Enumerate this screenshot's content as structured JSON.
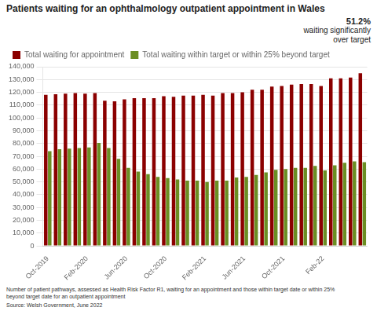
{
  "chart_data": {
    "type": "bar",
    "title": "Patients waiting for an ophthalmology outpatient appointment in Wales",
    "categories": [
      "Oct-2019",
      null,
      null,
      null,
      "Feb-2020",
      null,
      null,
      null,
      "Jun-2020",
      null,
      null,
      null,
      "Oct-2020",
      null,
      null,
      null,
      "Feb-2021",
      null,
      null,
      null,
      "Jun-2021",
      null,
      null,
      null,
      "Oct-2021",
      null,
      null,
      null,
      "Feb-22",
      null,
      null,
      null,
      null
    ],
    "series": [
      {
        "name": "Total waiting for appointment",
        "color": "#8B0000",
        "values": [
          118000,
          118500,
          119000,
          119500,
          119000,
          119500,
          113500,
          113000,
          114500,
          115500,
          115500,
          115500,
          117000,
          116500,
          117500,
          117500,
          118000,
          117500,
          119500,
          119500,
          120000,
          122000,
          122000,
          124500,
          125000,
          126000,
          126500,
          126500,
          125000,
          131000,
          131000,
          131500,
          135000
        ]
      },
      {
        "name": "Total waiting within target or within 25% beyond target",
        "color": "#6B8E23",
        "values": [
          74000,
          75500,
          76000,
          76500,
          77000,
          80500,
          76500,
          68000,
          61000,
          58000,
          56000,
          54000,
          53000,
          52000,
          51000,
          51000,
          50000,
          51000,
          51000,
          53500,
          54000,
          55500,
          57500,
          59500,
          60000,
          61000,
          61000,
          62500,
          59000,
          63000,
          65000,
          66000,
          65500
        ]
      }
    ],
    "ylim": [
      0,
      140000
    ],
    "yticks": [
      0,
      {
        "value": 10000,
        "label": "10,000"
      },
      {
        "value": 20000,
        "label": "20,000"
      },
      {
        "value": 30000,
        "label": "30,000"
      },
      {
        "value": 40000,
        "label": "40,000"
      },
      {
        "value": 50000,
        "label": "50,000"
      },
      {
        "value": 60000,
        "label": "60,000"
      },
      {
        "value": 70000,
        "label": "70,000"
      },
      {
        "value": 80000,
        "label": "80,000"
      },
      {
        "value": 90000,
        "label": "90,000"
      },
      {
        "value": 100000,
        "label": "100,000"
      },
      {
        "value": 110000,
        "label": "110,000"
      },
      {
        "value": 120000,
        "label": "120,000"
      },
      {
        "value": 130000,
        "label": "130,000"
      },
      {
        "value": 140000,
        "label": "140,000"
      }
    ],
    "grid": true,
    "legend": "upper left",
    "annotations": [
      "51.2%",
      "waiting significantly",
      "over target"
    ],
    "footnote": "Number of patient pathways, assessed as Health Risk Factor R1, waiting for an appointment and those within target date or within 25%\nbeyond target date for an outpatient appointment",
    "source": "Source: Welsh Government, June 2022"
  }
}
